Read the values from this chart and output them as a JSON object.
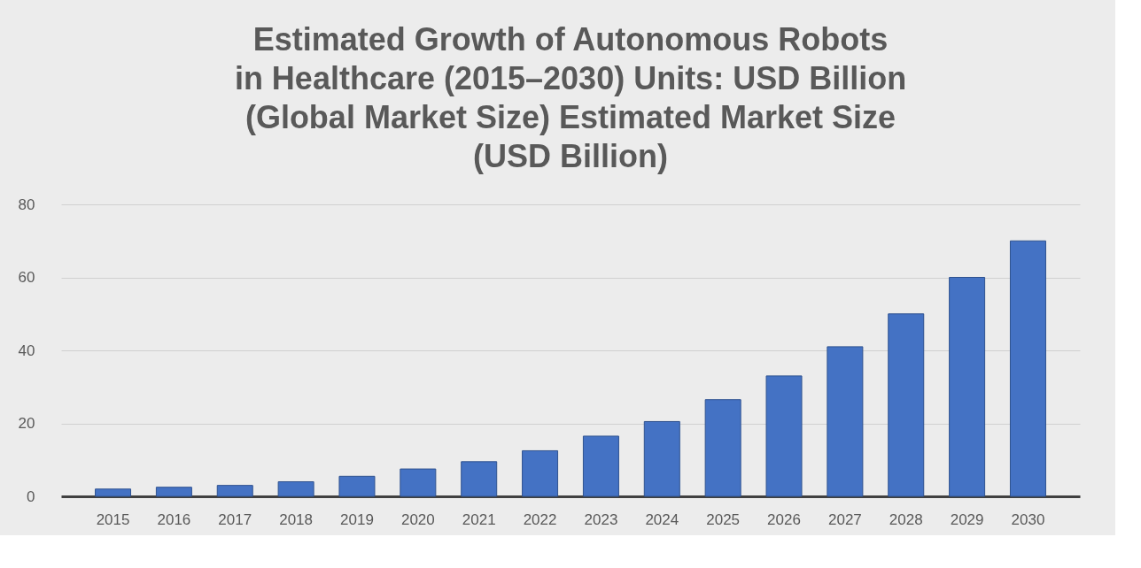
{
  "chart_data": {
    "type": "bar",
    "title": "Estimated Growth of Autonomous Robots\nin Healthcare (2015–2030) Units: USD Billion\n(Global Market Size) Estimated Market Size\n(USD Billion)",
    "categories": [
      "2015",
      "2016",
      "2017",
      "2018",
      "2019",
      "2020",
      "2021",
      "2022",
      "2023",
      "2024",
      "2025",
      "2026",
      "2027",
      "2028",
      "2029",
      "2030"
    ],
    "values": [
      2,
      2.5,
      3,
      4,
      5.5,
      7.5,
      9.5,
      12.5,
      16.5,
      20.5,
      26.5,
      33,
      41,
      50,
      60,
      70
    ],
    "color": "#4472c4",
    "ylim": [
      0,
      80
    ],
    "yticks": [
      0,
      20,
      40,
      60,
      80
    ],
    "grid": "y"
  }
}
